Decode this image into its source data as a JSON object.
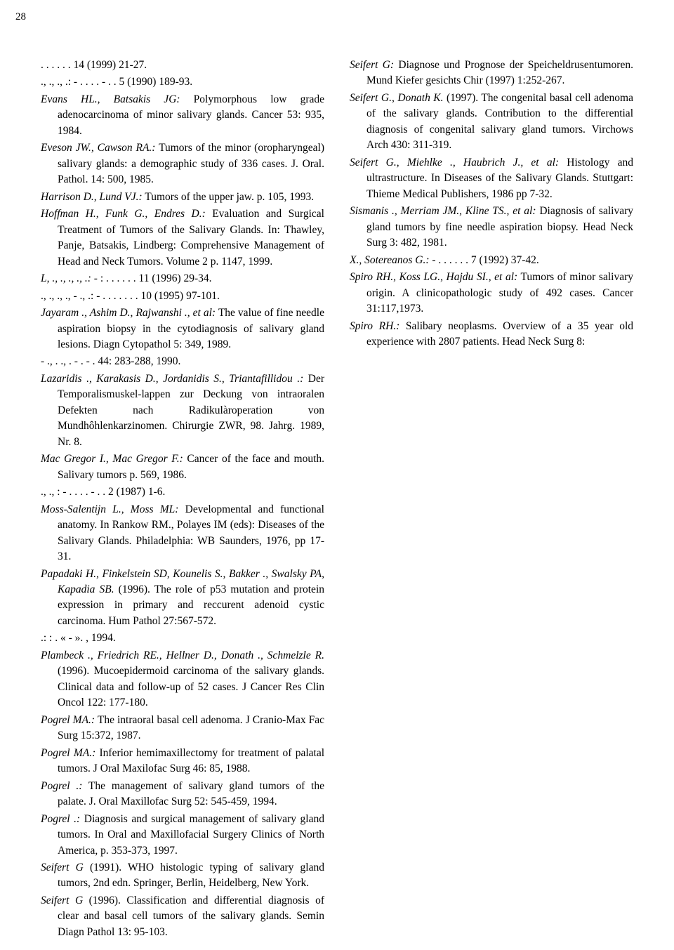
{
  "page_number": "28",
  "references": [
    {
      "authors": "",
      "text": ".   .   .     .               .       . 14 (1999) 21-27."
    },
    {
      "authors": "",
      "text": ".,            .,                .,           .:                                                               -                              .     .     .     .         -    .     . 5 (1990) 189-93."
    },
    {
      "authors": "Evans HL., Batsakis JG:",
      "text": " Polymorphous low grade adenocarcinoma of minor salivary glands. Cancer 53: 935, 1984."
    },
    {
      "authors": "Eveson JW., Cawson RA.:",
      "text": " Tumors of the minor (oropharyngeal) salivary glands: a demographic study of 336 cases. J. Oral. Pathol. 14: 500, 1985."
    },
    {
      "authors": "Harrison D., Lund VJ.:",
      "text": " Tumors of the upper jaw. p. 105, 1993."
    },
    {
      "authors": "Hoffman H., Funk G., Endres D.:",
      "text": " Evaluation and Surgical Treatment of Tumors of the Salivary Glands. In: Thawley, Panje, Batsakis, Lindberg: Comprehensive Management of Head and Neck Tumors. Volume 2 p. 1147, 1999."
    },
    {
      "authors": "      L,              .,                   .,           .,            .,                .:",
      "text": "                   -                                          :                      .     .     .     .              .     . 11 (1996) 29-34."
    },
    {
      "authors": "",
      "text": "       .,             .,              .,           .,     -           .,               .:                                                                    -            .                                   .     .    .     .         .     . 10 (1995) 97-101."
    },
    {
      "authors": "Jayaram  ., Ashim D., Rajwanshi  ., et al:",
      "text": " The value of fine needle aspiration biopsy in the cytodiagnosis of salivary gland lesions. Diagn Cytopathol 5: 349, 1989."
    },
    {
      "authors": "",
      "text": "           -                   .,                    . .,              .                                         -                                                  .                                                  -            .                                    44: 283-288, 1990."
    },
    {
      "authors": "Lazaridis  ., Karakasis D., Jordanidis S., Triantafillidou  .:",
      "text": " Der Temporalismuskel-lappen zur Deckung von intraoralen Defekten nach Radikulàroperation von Mundhôhlenkarzinomen. Chirurgie ZWR, 98. Jahrg. 1989, Nr. 8."
    },
    {
      "authors": "Mac Gregor I., Mac Gregor F.:",
      "text": " Cancer of the face and mouth. Salivary tumors p. 569, 1986."
    },
    {
      "authors": "",
      "text": "         .,                   .,          :           -                                                                          .     .     .     .     -    .     . 2 (1987) 1-6."
    },
    {
      "authors": "Moss-Salentijn L., Moss ML:",
      "text": " Developmental and functional anatomy. In Rankow RM., Polayes IM (eds): Diseases of the Salivary Glands. Philadelphia: WB Saunders, 1976, pp 17-31."
    },
    {
      "authors": "Papadaki H., Finkelstein SD, Kounelis S., Bakker  ., Swalsky PA, Kapadia SB.",
      "text": " (1996). The role of p53 mutation and protein expression in primary and reccurent adenoid cystic carcinoma. Hum Pathol 27:567-572."
    },
    {
      "authors": "",
      "text": "                       .:                  :                                   .               «     -        ».              , 1994."
    },
    {
      "authors": "Plambeck  ., Friedrich RE., Hellner D., Donath  ., Schmelzle R.",
      "text": " (1996). Mucoepidermoid carcinoma of the salivary glands. Clinical data and follow-up of 52 cases. J Cancer Res Clin Oncol 122: 177-180."
    },
    {
      "authors": "Pogrel MA.:",
      "text": " The intraoral basal cell adenoma. J Cranio-Max Fac Surg 15:372, 1987."
    },
    {
      "authors": "Pogrel MA.:",
      "text": " Inferior hemimaxillectomy for treatment of palatal tumors. J Oral Maxilofac Surg 46: 85, 1988."
    },
    {
      "authors": "Pogrel  .:",
      "text": " The management of salivary gland tumors of the palate. J. Oral Maxillofac Surg 52: 545-459, 1994."
    },
    {
      "authors": "Pogrel  .:",
      "text": " Diagnosis and surgical management of salivary gland tumors. In Oral and Maxillofacial Surgery Clinics of North America, p. 353-373, 1997."
    },
    {
      "authors": "Seifert G",
      "text": " (1991). WHO histologic typing of salivary gland tumors, 2nd edn. Springer, Berlin, Heidelberg, New York."
    },
    {
      "authors": "Seifert G",
      "text": " (1996). Classification and differential diagnosis of clear and basal cell tumors of the salivary glands. Semin Diagn Pathol 13: 95-103."
    },
    {
      "authors": "Seifert G:",
      "text": " Diagnose und Prognose der Speicheldrusentumoren. Mund Kiefer gesichts Chir (1997) 1:252-267."
    },
    {
      "authors": "Seifert G., Donath K.",
      "text": " (1997). The congenital basal cell adenoma of the salivary glands. Contribution to the differential diagnosis of congenital salivary gland tumors. Virchows Arch 430: 311-319."
    },
    {
      "authors": "Seifert G., Miehlke  ., Haubrich J., et al:",
      "text": " Histology and ultrastructure. In Diseases of the Salivary Glands. Stuttgart: Thieme Medical Publishers, 1986 pp 7-32."
    },
    {
      "authors": "Sismanis  ., Merriam JM., Kline TS., et al:",
      "text": " Diagnosis of salivary gland tumors by fine needle aspiration biopsy. Head Neck Surg 3: 482, 1981."
    },
    {
      "authors": "        X., Sotereanos G.:",
      "text": "                         -                                                       .           .     .     .                .     . 7 (1992) 37-42."
    },
    {
      "authors": "Spiro RH., Koss LG., Hajdu SI., et al:",
      "text": " Tumors of minor salivary origin. A clinicopathologic study of 492 cases. Cancer 31:117,1973."
    },
    {
      "authors": "Spiro RH.:",
      "text": " Salibary neoplasms. Overview of a 35 year old experience with 2807 patients. Head Neck Surg 8:"
    }
  ]
}
